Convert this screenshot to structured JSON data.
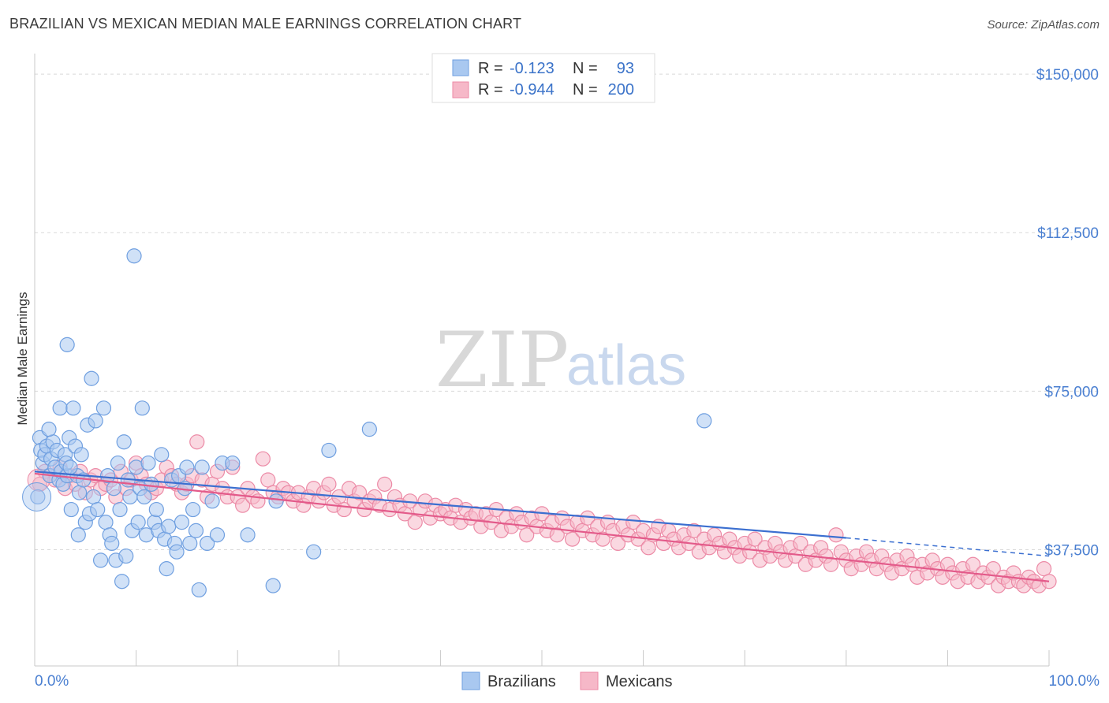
{
  "title": "BRAZILIAN VS MEXICAN MEDIAN MALE EARNINGS CORRELATION CHART",
  "source": "Source: ZipAtlas.com",
  "watermark": {
    "zip": "ZIP",
    "atlas": "atlas"
  },
  "legend": {
    "rows": [
      {
        "r_label": "R =",
        "r_value": "-0.123",
        "n_label": "N =",
        "n_value": "93",
        "color": "#a9c8f0"
      },
      {
        "r_label": "R =",
        "r_value": "-0.944",
        "n_label": "N =",
        "n_value": "200",
        "color": "#f6b8c8"
      }
    ]
  },
  "bottom_legend": [
    {
      "label": "Brazilians",
      "color": "#a9c8f0"
    },
    {
      "label": "Mexicans",
      "color": "#f6b8c8"
    }
  ],
  "chart_data": {
    "type": "scatter",
    "title": "BRAZILIAN VS MEXICAN MEDIAN MALE EARNINGS CORRELATION CHART",
    "xlabel": "",
    "ylabel": "Median Male Earnings",
    "xlim": [
      0,
      100
    ],
    "ylim": [
      10000,
      153000
    ],
    "x_tick_labels": [
      "0.0%",
      "100.0%"
    ],
    "y_ticks": [
      37500,
      75000,
      112500,
      150000
    ],
    "y_tick_labels": [
      "$37,500",
      "$75,000",
      "$112,500",
      "$150,000"
    ],
    "grid": true,
    "legend_position": "top-center",
    "series": [
      {
        "name": "Brazilians",
        "color": "#a9c8f0",
        "stroke": "#6f9fe0",
        "trend": {
          "x": [
            0,
            80
          ],
          "y": [
            56000,
            40300
          ],
          "dashed_to_x": 100,
          "dashed_to_y": 36000,
          "color": "#3b6fd0"
        },
        "points": [
          [
            0.3,
            50000
          ],
          [
            0.5,
            64000
          ],
          [
            0.6,
            61000
          ],
          [
            0.8,
            58000
          ],
          [
            1.0,
            60000
          ],
          [
            1.2,
            62000
          ],
          [
            1.5,
            55000
          ],
          [
            1.6,
            59000
          ],
          [
            1.8,
            63000
          ],
          [
            2.0,
            57000
          ],
          [
            2.2,
            61000
          ],
          [
            2.4,
            54000
          ],
          [
            2.6,
            56000
          ],
          [
            2.8,
            53000
          ],
          [
            3.0,
            60000
          ],
          [
            3.2,
            55000
          ],
          [
            1.4,
            66000
          ],
          [
            2.5,
            71000
          ],
          [
            3.1,
            58000
          ],
          [
            3.4,
            64000
          ],
          [
            3.6,
            47000
          ],
          [
            3.8,
            71000
          ],
          [
            4.0,
            62000
          ],
          [
            4.2,
            55000
          ],
          [
            4.4,
            51000
          ],
          [
            4.6,
            60000
          ],
          [
            4.8,
            54000
          ],
          [
            5.0,
            44000
          ],
          [
            3.2,
            86000
          ],
          [
            4.3,
            41000
          ],
          [
            3.5,
            57000
          ],
          [
            5.2,
            67000
          ],
          [
            5.4,
            46000
          ],
          [
            5.6,
            78000
          ],
          [
            5.8,
            50000
          ],
          [
            6.0,
            68000
          ],
          [
            6.2,
            47000
          ],
          [
            6.5,
            35000
          ],
          [
            6.8,
            71000
          ],
          [
            7.0,
            44000
          ],
          [
            7.2,
            55000
          ],
          [
            7.4,
            41000
          ],
          [
            7.6,
            39000
          ],
          [
            7.8,
            52000
          ],
          [
            8.0,
            35000
          ],
          [
            8.2,
            58000
          ],
          [
            8.4,
            47000
          ],
          [
            8.6,
            30000
          ],
          [
            8.8,
            63000
          ],
          [
            9.0,
            36000
          ],
          [
            9.2,
            54000
          ],
          [
            9.4,
            50000
          ],
          [
            9.6,
            42000
          ],
          [
            9.8,
            107000
          ],
          [
            10.0,
            57000
          ],
          [
            10.2,
            44000
          ],
          [
            10.4,
            52000
          ],
          [
            10.6,
            71000
          ],
          [
            10.8,
            50000
          ],
          [
            11.0,
            41000
          ],
          [
            11.2,
            58000
          ],
          [
            11.5,
            53000
          ],
          [
            11.8,
            44000
          ],
          [
            12.0,
            47000
          ],
          [
            12.2,
            42000
          ],
          [
            12.5,
            60000
          ],
          [
            12.8,
            40000
          ],
          [
            13.0,
            33000
          ],
          [
            13.2,
            43000
          ],
          [
            13.5,
            54000
          ],
          [
            13.8,
            39000
          ],
          [
            14.0,
            37000
          ],
          [
            14.2,
            55000
          ],
          [
            14.5,
            44000
          ],
          [
            14.8,
            52000
          ],
          [
            15.0,
            57000
          ],
          [
            15.3,
            39000
          ],
          [
            15.6,
            47000
          ],
          [
            15.9,
            42000
          ],
          [
            16.2,
            28000
          ],
          [
            16.5,
            57000
          ],
          [
            17.0,
            39000
          ],
          [
            17.5,
            49000
          ],
          [
            18.0,
            41000
          ],
          [
            18.5,
            58000
          ],
          [
            19.5,
            58000
          ],
          [
            21.0,
            41000
          ],
          [
            23.8,
            49000
          ],
          [
            23.5,
            29000
          ],
          [
            27.5,
            37000
          ],
          [
            29.0,
            61000
          ],
          [
            33.0,
            66000
          ],
          [
            66.0,
            68000
          ]
        ]
      },
      {
        "name": "Mexicans",
        "color": "#f6b8c8",
        "stroke": "#ec8aa6",
        "trend": {
          "x": [
            0,
            100
          ],
          "y": [
            55500,
            30000
          ],
          "color": "#e35a8a"
        },
        "points": [
          [
            0.5,
            53000
          ],
          [
            1.0,
            56000
          ],
          [
            1.5,
            55000
          ],
          [
            2.0,
            54000
          ],
          [
            2.5,
            57000
          ],
          [
            3.0,
            52000
          ],
          [
            3.5,
            55000
          ],
          [
            4.0,
            53000
          ],
          [
            4.5,
            56000
          ],
          [
            5.0,
            51000
          ],
          [
            5.5,
            54000
          ],
          [
            6.0,
            55000
          ],
          [
            6.5,
            52000
          ],
          [
            7.0,
            53000
          ],
          [
            7.5,
            54000
          ],
          [
            8.0,
            50000
          ],
          [
            8.5,
            56000
          ],
          [
            9.0,
            52000
          ],
          [
            9.5,
            54000
          ],
          [
            10.0,
            58000
          ],
          [
            10.5,
            55000
          ],
          [
            11.0,
            53000
          ],
          [
            11.5,
            51000
          ],
          [
            12.0,
            52000
          ],
          [
            12.5,
            54000
          ],
          [
            13.0,
            57000
          ],
          [
            13.5,
            55000
          ],
          [
            14.0,
            53000
          ],
          [
            14.5,
            51000
          ],
          [
            15.0,
            53000
          ],
          [
            15.5,
            55000
          ],
          [
            16.0,
            63000
          ],
          [
            16.5,
            54000
          ],
          [
            17.0,
            50000
          ],
          [
            17.5,
            53000
          ],
          [
            18.0,
            56000
          ],
          [
            18.5,
            52000
          ],
          [
            19.0,
            50000
          ],
          [
            19.5,
            57000
          ],
          [
            20.0,
            50000
          ],
          [
            20.5,
            48000
          ],
          [
            21.0,
            52000
          ],
          [
            21.5,
            50000
          ],
          [
            22.0,
            49000
          ],
          [
            22.5,
            59000
          ],
          [
            23.0,
            54000
          ],
          [
            23.5,
            51000
          ],
          [
            24.0,
            50000
          ],
          [
            24.5,
            52000
          ],
          [
            25.0,
            51000
          ],
          [
            25.5,
            49000
          ],
          [
            26.0,
            51000
          ],
          [
            26.5,
            48000
          ],
          [
            27.0,
            50000
          ],
          [
            27.5,
            52000
          ],
          [
            28.0,
            49000
          ],
          [
            28.5,
            51000
          ],
          [
            29.0,
            53000
          ],
          [
            29.5,
            48000
          ],
          [
            30.0,
            50000
          ],
          [
            30.5,
            47000
          ],
          [
            31.0,
            52000
          ],
          [
            31.5,
            49000
          ],
          [
            32.0,
            51000
          ],
          [
            32.5,
            47000
          ],
          [
            33.0,
            49000
          ],
          [
            33.5,
            50000
          ],
          [
            34.0,
            48000
          ],
          [
            34.5,
            53000
          ],
          [
            35.0,
            47000
          ],
          [
            35.5,
            50000
          ],
          [
            36.0,
            48000
          ],
          [
            36.5,
            46000
          ],
          [
            37.0,
            49000
          ],
          [
            37.5,
            44000
          ],
          [
            38.0,
            47000
          ],
          [
            38.5,
            49000
          ],
          [
            39.0,
            45000
          ],
          [
            39.5,
            48000
          ],
          [
            40.0,
            46000
          ],
          [
            40.5,
            47000
          ],
          [
            41.0,
            45000
          ],
          [
            41.5,
            48000
          ],
          [
            42.0,
            44000
          ],
          [
            42.5,
            47000
          ],
          [
            43.0,
            45000
          ],
          [
            43.5,
            46000
          ],
          [
            44.0,
            43000
          ],
          [
            44.5,
            46000
          ],
          [
            45.0,
            44000
          ],
          [
            45.5,
            47000
          ],
          [
            46.0,
            42000
          ],
          [
            46.5,
            45000
          ],
          [
            47.0,
            43000
          ],
          [
            47.5,
            46000
          ],
          [
            48.0,
            44000
          ],
          [
            48.5,
            41000
          ],
          [
            49.0,
            45000
          ],
          [
            49.5,
            43000
          ],
          [
            50.0,
            46000
          ],
          [
            50.5,
            42000
          ],
          [
            51.0,
            44000
          ],
          [
            51.5,
            41000
          ],
          [
            52.0,
            45000
          ],
          [
            52.5,
            43000
          ],
          [
            53.0,
            40000
          ],
          [
            53.5,
            44000
          ],
          [
            54.0,
            42000
          ],
          [
            54.5,
            45000
          ],
          [
            55.0,
            41000
          ],
          [
            55.5,
            43000
          ],
          [
            56.0,
            40000
          ],
          [
            56.5,
            44000
          ],
          [
            57.0,
            42000
          ],
          [
            57.5,
            39000
          ],
          [
            58.0,
            43000
          ],
          [
            58.5,
            41000
          ],
          [
            59.0,
            44000
          ],
          [
            59.5,
            40000
          ],
          [
            60.0,
            42000
          ],
          [
            60.5,
            38000
          ],
          [
            61.0,
            41000
          ],
          [
            61.5,
            43000
          ],
          [
            62.0,
            39000
          ],
          [
            62.5,
            42000
          ],
          [
            63.0,
            40000
          ],
          [
            63.5,
            38000
          ],
          [
            64.0,
            41000
          ],
          [
            64.5,
            39000
          ],
          [
            65.0,
            42000
          ],
          [
            65.5,
            37000
          ],
          [
            66.0,
            40000
          ],
          [
            66.5,
            38000
          ],
          [
            67.0,
            41000
          ],
          [
            67.5,
            39000
          ],
          [
            68.0,
            37000
          ],
          [
            68.5,
            40000
          ],
          [
            69.0,
            38000
          ],
          [
            69.5,
            36000
          ],
          [
            70.0,
            39000
          ],
          [
            70.5,
            37000
          ],
          [
            71.0,
            40000
          ],
          [
            71.5,
            35000
          ],
          [
            72.0,
            38000
          ],
          [
            72.5,
            36000
          ],
          [
            73.0,
            39000
          ],
          [
            73.5,
            37000
          ],
          [
            74.0,
            35000
          ],
          [
            74.5,
            38000
          ],
          [
            75.0,
            36000
          ],
          [
            75.5,
            39000
          ],
          [
            76.0,
            34000
          ],
          [
            76.5,
            37000
          ],
          [
            77.0,
            35000
          ],
          [
            77.5,
            38000
          ],
          [
            78.0,
            36000
          ],
          [
            78.5,
            34000
          ],
          [
            79.0,
            41000
          ],
          [
            79.5,
            37000
          ],
          [
            80.0,
            35000
          ],
          [
            80.5,
            33000
          ],
          [
            81.0,
            36000
          ],
          [
            81.5,
            34000
          ],
          [
            82.0,
            37000
          ],
          [
            82.5,
            35000
          ],
          [
            83.0,
            33000
          ],
          [
            83.5,
            36000
          ],
          [
            84.0,
            34000
          ],
          [
            84.5,
            32000
          ],
          [
            85.0,
            35000
          ],
          [
            85.5,
            33000
          ],
          [
            86.0,
            36000
          ],
          [
            86.5,
            34000
          ],
          [
            87.0,
            31000
          ],
          [
            87.5,
            34000
          ],
          [
            88.0,
            32000
          ],
          [
            88.5,
            35000
          ],
          [
            89.0,
            33000
          ],
          [
            89.5,
            31000
          ],
          [
            90.0,
            34000
          ],
          [
            90.5,
            32000
          ],
          [
            91.0,
            30000
          ],
          [
            91.5,
            33000
          ],
          [
            92.0,
            31000
          ],
          [
            92.5,
            34000
          ],
          [
            93.0,
            30000
          ],
          [
            93.5,
            32000
          ],
          [
            94.0,
            31000
          ],
          [
            94.5,
            33000
          ],
          [
            95.0,
            29000
          ],
          [
            95.5,
            31000
          ],
          [
            96.0,
            30000
          ],
          [
            96.5,
            32000
          ],
          [
            97.0,
            30000
          ],
          [
            97.5,
            29000
          ],
          [
            98.0,
            31000
          ],
          [
            98.5,
            30000
          ],
          [
            99.0,
            29000
          ],
          [
            99.5,
            33000
          ],
          [
            100.0,
            30000
          ]
        ]
      }
    ]
  }
}
